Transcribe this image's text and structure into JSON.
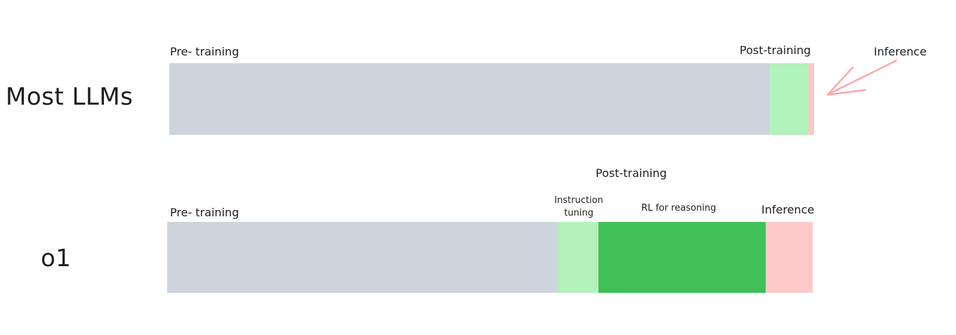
{
  "rows": {
    "most_llms": {
      "label": "Most LLMs",
      "pretraining_label": "Pre- training",
      "posttraining_label": "Post-training",
      "inference_label": "Inference"
    },
    "o1": {
      "label": "o1",
      "pretraining_label": "Pre- training",
      "posttraining_label": "Post-training",
      "instruction_label_line1": "Instruction",
      "instruction_label_line2": "tuning",
      "rl_label": "RL for reasoning",
      "inference_label": "Inference"
    }
  },
  "colors": {
    "pretraining": "#ced4db",
    "instruction": "#b2f2bb",
    "rl": "#40c057",
    "inference": "#ffc9c9",
    "arrow": "#ffa8a8"
  }
}
